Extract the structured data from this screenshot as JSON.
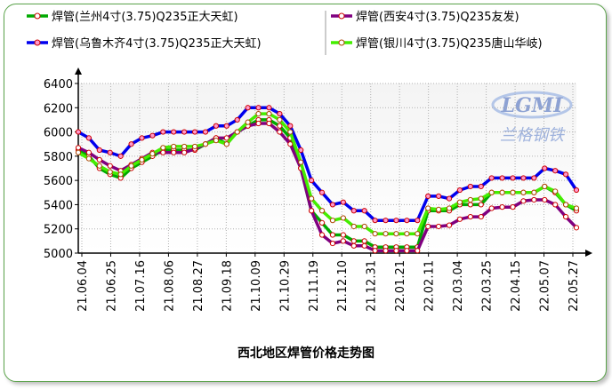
{
  "chart_data": {
    "type": "line",
    "title": "西北地区焊管价格走势图",
    "xlabel": "",
    "ylabel": "",
    "ylim": [
      5000,
      6400
    ],
    "yticks": [
      5000,
      5200,
      5400,
      5600,
      5800,
      6000,
      6200,
      6400
    ],
    "grid": true,
    "legend_position": "top",
    "x_tick_labels": [
      "21.06.04",
      "21.06.25",
      "21.07.16",
      "21.08.06",
      "21.08.27",
      "21.09.18",
      "21.10.09",
      "21.10.29",
      "21.11.19",
      "21.12.10",
      "21.12.31",
      "22.01.21",
      "22.02.11",
      "22.03.04",
      "22.03.25",
      "22.04.15",
      "22.05.07",
      "22.05.27"
    ],
    "series": [
      {
        "name": "焊管(兰州4寸(3.75)Q235正大天虹)",
        "color": "#00aa00",
        "marker_fill": "#ffffff",
        "marker_edge": "#cc0000",
        "values": [
          5850,
          5800,
          5700,
          5650,
          5620,
          5700,
          5750,
          5800,
          5850,
          5850,
          5850,
          5850,
          5900,
          5950,
          5900,
          6000,
          6050,
          6100,
          6100,
          6050,
          5950,
          5700,
          5350,
          5250,
          5150,
          5150,
          5100,
          5100,
          5050,
          5050,
          5050,
          5050,
          5050,
          5350,
          5350,
          5350,
          5400,
          5400,
          5400,
          5500,
          5500,
          5500,
          5500,
          5500,
          5550,
          5500,
          5400,
          5350
        ]
      },
      {
        "name": "焊管(乌鲁木齐4寸(3.75)Q235正大天虹)",
        "color": "#0000ee",
        "marker_fill": "#ff99cc",
        "marker_edge": "#cc0000",
        "values": [
          6000,
          5950,
          5850,
          5830,
          5800,
          5900,
          5950,
          5970,
          6000,
          6000,
          6000,
          6000,
          6000,
          6050,
          6050,
          6100,
          6200,
          6200,
          6200,
          6150,
          6050,
          5850,
          5600,
          5500,
          5400,
          5420,
          5350,
          5350,
          5270,
          5270,
          5270,
          5270,
          5270,
          5470,
          5470,
          5450,
          5520,
          5550,
          5550,
          5620,
          5620,
          5620,
          5620,
          5620,
          5700,
          5680,
          5650,
          5520
        ]
      },
      {
        "name": "焊管(西安4寸(3.75)Q235友发)",
        "color": "#800080",
        "marker_fill": "#ffffff",
        "marker_edge": "#cc0000",
        "values": [
          5870,
          5830,
          5770,
          5720,
          5680,
          5730,
          5780,
          5830,
          5830,
          5830,
          5830,
          5860,
          5900,
          5950,
          5950,
          6000,
          6050,
          6070,
          6070,
          6000,
          5900,
          5700,
          5350,
          5150,
          5080,
          5100,
          5060,
          5060,
          5020,
          5020,
          5020,
          5020,
          5020,
          5220,
          5220,
          5230,
          5280,
          5300,
          5300,
          5370,
          5380,
          5380,
          5430,
          5440,
          5440,
          5400,
          5300,
          5210
        ]
      },
      {
        "name": "焊管(银川4寸(3.75)Q235唐山华岐)",
        "color": "#44ee00",
        "marker_fill": "#ffffff",
        "marker_edge": "#aa4400",
        "values": [
          5830,
          5780,
          5720,
          5670,
          5650,
          5720,
          5770,
          5820,
          5870,
          5880,
          5880,
          5880,
          5900,
          5930,
          5900,
          6000,
          6080,
          6150,
          6150,
          6100,
          6000,
          5750,
          5450,
          5350,
          5270,
          5290,
          5220,
          5220,
          5160,
          5160,
          5160,
          5160,
          5160,
          5370,
          5360,
          5370,
          5420,
          5440,
          5450,
          5500,
          5500,
          5500,
          5500,
          5500,
          5550,
          5510,
          5400,
          5370
        ]
      }
    ]
  },
  "logo": {
    "lettering": "LGMI",
    "sub": "兰格钢铁"
  }
}
